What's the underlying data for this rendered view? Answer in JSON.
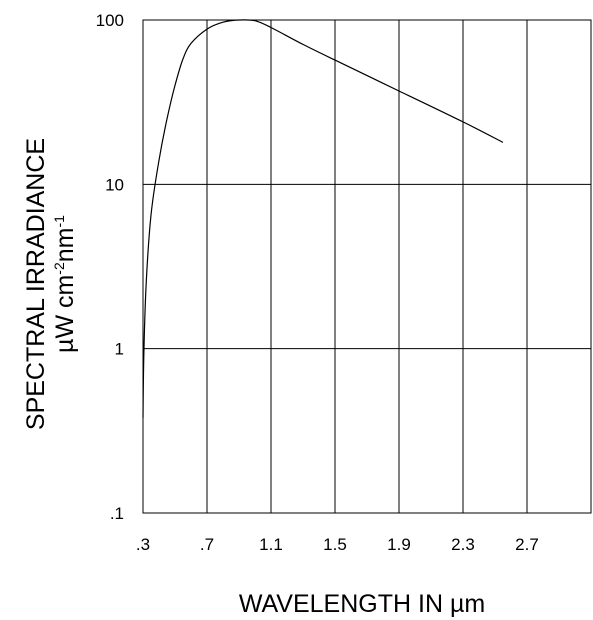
{
  "chart_data": {
    "type": "line",
    "title": "",
    "xlabel": "WAVELENGTH IN µm",
    "ylabel": {
      "line1": "SPECTRAL IRRADIANCE",
      "unit_a": "µW cm",
      "exp_a": "-2",
      "unit_b": "nm",
      "exp_b": "-1"
    },
    "x_scale": "linear",
    "y_scale": "log",
    "xlim": [
      0.3,
      3.1
    ],
    "ylim": [
      0.1,
      100
    ],
    "x_ticks": [
      {
        "value": 0.3,
        "label": ".3"
      },
      {
        "value": 0.7,
        "label": ".7"
      },
      {
        "value": 1.1,
        "label": "1.1"
      },
      {
        "value": 1.5,
        "label": "1.5"
      },
      {
        "value": 1.9,
        "label": "1.9"
      },
      {
        "value": 2.3,
        "label": "2.3"
      },
      {
        "value": 2.7,
        "label": "2.7"
      }
    ],
    "y_ticks": [
      {
        "value": 0.1,
        "label": ".1"
      },
      {
        "value": 1,
        "label": "1"
      },
      {
        "value": 10,
        "label": "10"
      },
      {
        "value": 100,
        "label": "100"
      }
    ],
    "grid": true,
    "series": [
      {
        "points": [
          [
            0.3,
            0.38
          ],
          [
            0.305,
            0.9
          ],
          [
            0.32,
            2.5
          ],
          [
            0.35,
            6.5
          ],
          [
            0.4,
            14
          ],
          [
            0.45,
            25
          ],
          [
            0.5,
            40
          ],
          [
            0.55,
            58
          ],
          [
            0.6,
            72
          ],
          [
            0.7,
            88
          ],
          [
            0.8,
            97
          ],
          [
            0.9,
            100
          ],
          [
            1.0,
            99
          ],
          [
            1.1,
            90
          ],
          [
            1.3,
            71
          ],
          [
            1.5,
            57
          ],
          [
            1.9,
            37
          ],
          [
            2.3,
            24
          ],
          [
            2.55,
            18
          ]
        ]
      }
    ]
  }
}
